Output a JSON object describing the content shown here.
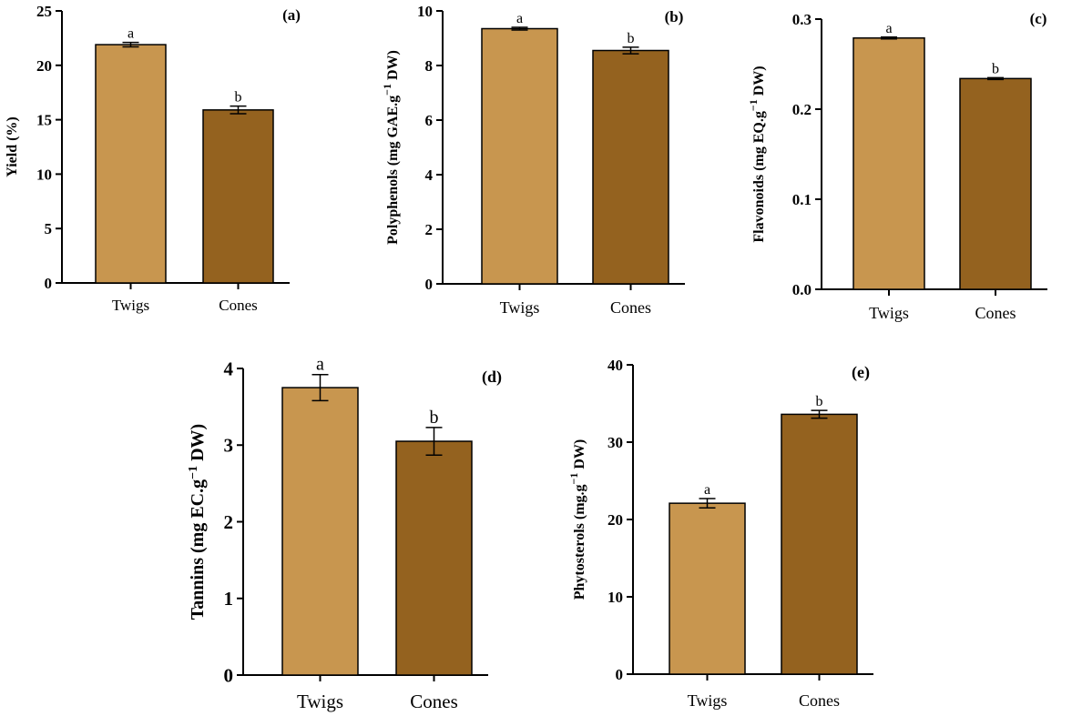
{
  "colors": {
    "twigs": "#C8964F",
    "cones": "#94621F",
    "axis": "#000000",
    "background": "#ffffff"
  },
  "chart_data": [
    {
      "type": "bar",
      "panel_label": "(a)",
      "categories": [
        "Twigs",
        "Cones"
      ],
      "values": [
        21.9,
        15.9
      ],
      "errors": [
        0.2,
        0.35
      ],
      "significance": [
        "a",
        "b"
      ],
      "ylabel": "Yield (%)",
      "ylabel_sup": "",
      "ylabel_post": "",
      "xlabel": "",
      "ylim": [
        0,
        25
      ],
      "yticks": [
        0,
        5,
        10,
        15,
        20,
        25
      ],
      "tick_labels": [
        "0",
        "5",
        "10",
        "15",
        "20",
        "25"
      ]
    },
    {
      "type": "bar",
      "panel_label": "(b)",
      "categories": [
        "Twigs",
        "Cones"
      ],
      "values": [
        9.35,
        8.55
      ],
      "errors": [
        0.05,
        0.12
      ],
      "significance": [
        "a",
        "b"
      ],
      "ylabel": "Polyphenols (mg GAE.g",
      "ylabel_sup": "−1",
      "ylabel_post": " DW)",
      "xlabel": "",
      "ylim": [
        0,
        10
      ],
      "yticks": [
        0,
        2,
        4,
        6,
        8,
        10
      ],
      "tick_labels": [
        "0",
        "2",
        "4",
        "6",
        "8",
        "10"
      ]
    },
    {
      "type": "bar",
      "panel_label": "(c)",
      "categories": [
        "Twigs",
        "Cones"
      ],
      "values": [
        0.279,
        0.234
      ],
      "errors": [
        0.001,
        0.001
      ],
      "significance": [
        "a",
        "b"
      ],
      "ylabel": "Flavonoids (mg EQ.g",
      "ylabel_sup": "−1",
      "ylabel_post": " DW)",
      "xlabel": "",
      "ylim": [
        0,
        0.3
      ],
      "yticks": [
        0,
        0.1,
        0.2,
        0.3
      ],
      "tick_labels": [
        "0.0",
        "0.1",
        "0.2",
        "0.3"
      ]
    },
    {
      "type": "bar",
      "panel_label": "(d)",
      "categories": [
        "Twigs",
        "Cones"
      ],
      "values": [
        3.75,
        3.05
      ],
      "errors": [
        0.17,
        0.18
      ],
      "significance": [
        "a",
        "b"
      ],
      "ylabel": "Tannins (mg EC.g",
      "ylabel_sup": "−1",
      "ylabel_post": " DW)",
      "xlabel": "",
      "ylim": [
        0,
        4
      ],
      "yticks": [
        0,
        1,
        2,
        3,
        4
      ],
      "tick_labels": [
        "0",
        "1",
        "2",
        "3",
        "4"
      ]
    },
    {
      "type": "bar",
      "panel_label": "(e)",
      "categories": [
        "Twigs",
        "Cones"
      ],
      "values": [
        22.1,
        33.6
      ],
      "errors": [
        0.6,
        0.5
      ],
      "significance": [
        "a",
        "b"
      ],
      "ylabel": "Phytosterols (mg.g",
      "ylabel_sup": "−1",
      "ylabel_post": " DW)",
      "xlabel": "",
      "ylim": [
        0,
        40
      ],
      "yticks": [
        0,
        10,
        20,
        30,
        40
      ],
      "tick_labels": [
        "0",
        "10",
        "20",
        "30",
        "40"
      ]
    }
  ]
}
